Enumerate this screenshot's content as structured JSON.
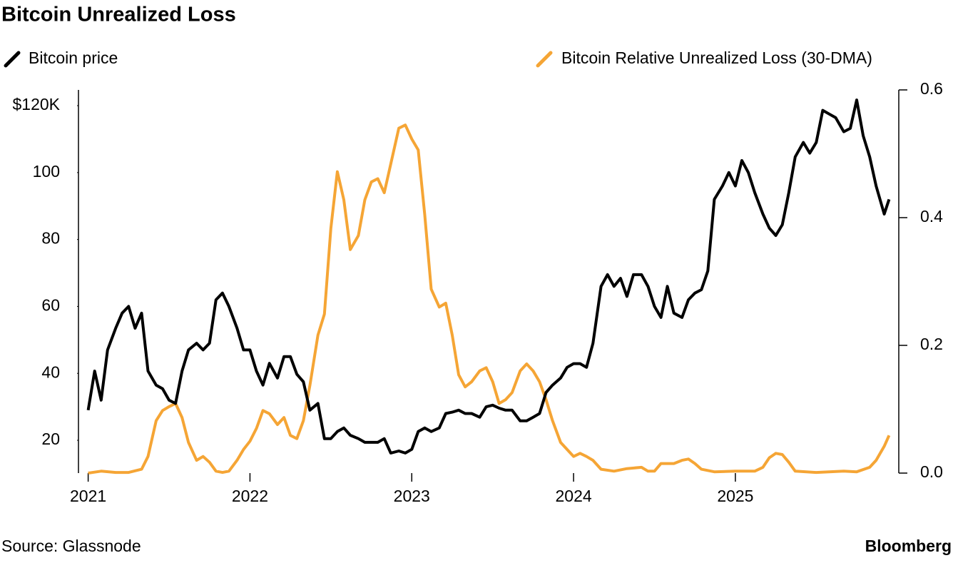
{
  "chart_data": {
    "type": "line",
    "title": "Bitcoin Unrealized Loss",
    "source": "Source: Glassnode",
    "brand": "Bloomberg",
    "xlim": [
      2020.94,
      2026.01
    ],
    "xticks": [
      2021,
      2022,
      2023,
      2024,
      2025
    ],
    "ylim": [
      10.2,
      124.7
    ],
    "yticks": [
      20,
      40,
      60,
      80,
      100,
      {
        "value": 120,
        "label": "$120K"
      }
    ],
    "y2lim": [
      0,
      0.6
    ],
    "y2ticks": [
      {
        "value": 0,
        "label": "0.0"
      },
      0.2,
      0.4,
      0.6
    ],
    "series": [
      {
        "name": "Bitcoin price",
        "color": "#000000",
        "axis": "y",
        "x": [
          2021.0,
          2021.04,
          2021.08,
          2021.12,
          2021.17,
          2021.21,
          2021.25,
          2021.29,
          2021.33,
          2021.37,
          2021.42,
          2021.46,
          2021.5,
          2021.54,
          2021.58,
          2021.62,
          2021.67,
          2021.71,
          2021.75,
          2021.79,
          2021.83,
          2021.87,
          2021.92,
          2021.96,
          2022.0,
          2022.04,
          2022.08,
          2022.12,
          2022.17,
          2022.21,
          2022.25,
          2022.29,
          2022.33,
          2022.37,
          2022.42,
          2022.46,
          2022.5,
          2022.54,
          2022.58,
          2022.62,
          2022.67,
          2022.71,
          2022.75,
          2022.79,
          2022.83,
          2022.87,
          2022.92,
          2022.96,
          2023.0,
          2023.04,
          2023.08,
          2023.12,
          2023.17,
          2023.21,
          2023.25,
          2023.29,
          2023.33,
          2023.37,
          2023.42,
          2023.46,
          2023.5,
          2023.54,
          2023.58,
          2023.62,
          2023.67,
          2023.71,
          2023.75,
          2023.79,
          2023.83,
          2023.87,
          2023.92,
          2023.96,
          2024.0,
          2024.04,
          2024.08,
          2024.12,
          2024.17,
          2024.21,
          2024.25,
          2024.29,
          2024.33,
          2024.37,
          2024.42,
          2024.46,
          2024.5,
          2024.54,
          2024.58,
          2024.62,
          2024.67,
          2024.71,
          2024.75,
          2024.79,
          2024.83,
          2024.87,
          2024.92,
          2024.96,
          2025.0,
          2025.04,
          2025.08,
          2025.12,
          2025.17,
          2025.21,
          2025.25,
          2025.29,
          2025.33,
          2025.37,
          2025.42,
          2025.46,
          2025.5,
          2025.54,
          2025.58,
          2025.62,
          2025.67,
          2025.71,
          2025.75,
          2025.79,
          2025.83,
          2025.87,
          2025.92,
          2025.95
        ],
        "values": [
          29,
          40.7,
          32,
          47,
          53.5,
          58,
          60,
          53.5,
          58,
          40.7,
          36.5,
          35.4,
          32,
          31,
          40.7,
          47,
          49,
          47,
          49,
          62,
          64,
          60,
          53.5,
          47,
          47,
          40.7,
          36.5,
          43,
          38.6,
          45,
          45,
          39.7,
          37.5,
          29,
          31,
          20.5,
          20.5,
          22.6,
          23.7,
          21.5,
          20.5,
          19.4,
          19.4,
          19.4,
          20.5,
          16.2,
          16.8,
          16.2,
          17.3,
          22.6,
          23.7,
          22.6,
          23.7,
          28,
          28.4,
          29,
          28,
          28,
          26.9,
          30,
          30.5,
          29.6,
          29,
          29,
          25.8,
          25.8,
          26.9,
          28,
          34.3,
          36.5,
          38.6,
          41.8,
          42.9,
          42.9,
          41.8,
          49,
          66,
          69.5,
          66,
          68.4,
          63,
          69.5,
          69.5,
          66,
          60,
          56.7,
          66,
          58,
          56.7,
          62,
          64,
          65,
          70.6,
          92,
          96,
          100,
          96,
          103.6,
          100,
          94,
          87.6,
          83.4,
          81.2,
          84.4,
          94,
          104.7,
          109,
          105.8,
          109,
          118.6,
          117.5,
          116.4,
          112.2,
          113.2,
          121.7,
          111,
          104.7,
          96,
          87.6,
          92
        ]
      },
      {
        "name": "Bitcoin Relative Unrealized Loss (30-DMA)",
        "color": "#f5a535",
        "axis": "y2",
        "x": [
          2021.0,
          2021.08,
          2021.17,
          2021.25,
          2021.33,
          2021.37,
          2021.42,
          2021.46,
          2021.5,
          2021.54,
          2021.58,
          2021.62,
          2021.67,
          2021.71,
          2021.75,
          2021.79,
          2021.83,
          2021.87,
          2021.92,
          2021.96,
          2022.0,
          2022.04,
          2022.08,
          2022.12,
          2022.17,
          2022.21,
          2022.25,
          2022.29,
          2022.33,
          2022.37,
          2022.42,
          2022.46,
          2022.5,
          2022.54,
          2022.58,
          2022.62,
          2022.67,
          2022.71,
          2022.75,
          2022.79,
          2022.83,
          2022.87,
          2022.92,
          2022.96,
          2023.0,
          2023.04,
          2023.08,
          2023.12,
          2023.17,
          2023.21,
          2023.25,
          2023.29,
          2023.33,
          2023.37,
          2023.42,
          2023.46,
          2023.5,
          2023.54,
          2023.58,
          2023.62,
          2023.67,
          2023.71,
          2023.75,
          2023.79,
          2023.83,
          2023.87,
          2023.92,
          2023.96,
          2024.0,
          2024.04,
          2024.08,
          2024.12,
          2024.17,
          2024.25,
          2024.33,
          2024.42,
          2024.46,
          2024.5,
          2024.54,
          2024.58,
          2024.62,
          2024.67,
          2024.71,
          2024.75,
          2024.79,
          2024.87,
          2025.0,
          2025.08,
          2025.12,
          2025.17,
          2025.21,
          2025.25,
          2025.29,
          2025.33,
          2025.37,
          2025.5,
          2025.67,
          2025.75,
          2025.83,
          2025.87,
          2025.92,
          2025.95
        ],
        "values": [
          0,
          0.003,
          0.001,
          0.001,
          0.006,
          0.026,
          0.082,
          0.098,
          0.104,
          0.109,
          0.087,
          0.048,
          0.02,
          0.026,
          0.017,
          0.003,
          0.001,
          0.003,
          0.02,
          0.037,
          0.05,
          0.07,
          0.098,
          0.093,
          0.076,
          0.087,
          0.059,
          0.054,
          0.082,
          0.137,
          0.216,
          0.249,
          0.383,
          0.472,
          0.428,
          0.35,
          0.372,
          0.428,
          0.456,
          0.461,
          0.439,
          0.484,
          0.54,
          0.545,
          0.523,
          0.506,
          0.405,
          0.288,
          0.26,
          0.266,
          0.216,
          0.154,
          0.135,
          0.143,
          0.16,
          0.165,
          0.143,
          0.109,
          0.115,
          0.126,
          0.16,
          0.171,
          0.16,
          0.143,
          0.115,
          0.082,
          0.048,
          0.037,
          0.026,
          0.031,
          0.026,
          0.02,
          0.006,
          0.003,
          0.007,
          0.009,
          0.003,
          0.003,
          0.015,
          0.015,
          0.015,
          0.02,
          0.022,
          0.015,
          0.006,
          0.002,
          0.003,
          0.003,
          0.003,
          0.009,
          0.024,
          0.031,
          0.029,
          0.017,
          0.003,
          0.001,
          0.003,
          0.002,
          0.009,
          0.02,
          0.042,
          0.059
        ]
      }
    ]
  }
}
